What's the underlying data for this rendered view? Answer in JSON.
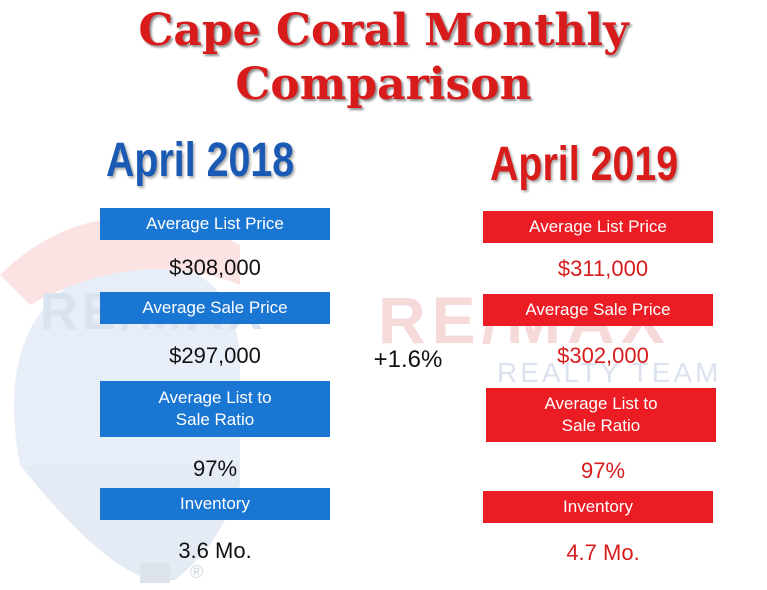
{
  "title": {
    "line1": "Cape Coral Monthly",
    "line2": "Comparison"
  },
  "left": {
    "year": "April 2018",
    "color": "#1a5ab4",
    "metrics": [
      {
        "label": "Average List Price",
        "value": "$308,000"
      },
      {
        "label": "Average Sale Price",
        "value": "$297,000"
      },
      {
        "label_line1": "Average List to",
        "label_line2": "Sale Ratio",
        "value": "97%"
      },
      {
        "label": "Inventory",
        "value": "3.6 Mo."
      }
    ]
  },
  "right": {
    "year": "April 2019",
    "color": "#d81c1c",
    "metrics": [
      {
        "label": "Average List Price",
        "value": "$311,000"
      },
      {
        "label": "Average Sale Price",
        "value": "$302,000"
      },
      {
        "label_line1": "Average List to",
        "label_line2": "Sale Ratio",
        "value": "97%"
      },
      {
        "label": "Inventory",
        "value": "4.7 Mo."
      }
    ]
  },
  "change": "+1.6%",
  "watermark": {
    "brand": "RE/MAX",
    "subtitle": "REALTY TEAM",
    "registered": "®"
  }
}
